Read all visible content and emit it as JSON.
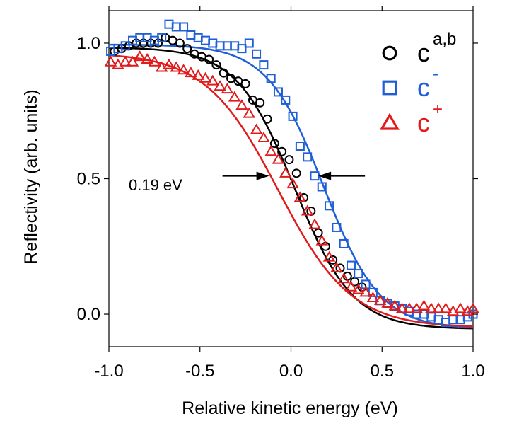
{
  "chart_data": {
    "type": "scatter",
    "title": "",
    "xlabel": "Relative kinetic energy (eV)",
    "ylabel": "Reflectivity (arb. units)",
    "xlim": [
      -1.0,
      1.0
    ],
    "ylim": [
      -0.12,
      1.12
    ],
    "xticks": [
      {
        "value": -1.0,
        "label": "-1.0"
      },
      {
        "value": -0.5,
        "label": "-0.5"
      },
      {
        "value": 0.0,
        "label": "0.0"
      },
      {
        "value": 0.5,
        "label": "0.5"
      },
      {
        "value": 1.0,
        "label": "1.0"
      }
    ],
    "yticks": [
      {
        "value": 0.0,
        "label": "0.0"
      },
      {
        "value": 0.5,
        "label": "0.5"
      },
      {
        "value": 1.0,
        "label": "1.0"
      }
    ],
    "grid": false,
    "legend_position": "top-right",
    "annotation": {
      "text": "0.19 eV",
      "y": 0.51,
      "arrow_left_x": -0.12,
      "arrow_right_x": 0.15
    },
    "series": [
      {
        "label_main": "c",
        "label_sup": "a,b",
        "marker": "circle",
        "color": "#000000",
        "points": [
          [
            -0.97,
            0.97
          ],
          [
            -0.93,
            0.98
          ],
          [
            -0.89,
            0.99
          ],
          [
            -0.85,
            1.0
          ],
          [
            -0.81,
            1.0
          ],
          [
            -0.77,
            1.0
          ],
          [
            -0.73,
            1.0
          ],
          [
            -0.69,
            1.02
          ],
          [
            -0.65,
            1.01
          ],
          [
            -0.61,
            1.0
          ],
          [
            -0.57,
            0.98
          ],
          [
            -0.53,
            0.96
          ],
          [
            -0.49,
            0.95
          ],
          [
            -0.45,
            0.94
          ],
          [
            -0.41,
            0.92
          ],
          [
            -0.37,
            0.89
          ],
          [
            -0.33,
            0.87
          ],
          [
            -0.29,
            0.86
          ],
          [
            -0.25,
            0.85
          ],
          [
            -0.21,
            0.79
          ],
          [
            -0.17,
            0.78
          ],
          [
            -0.13,
            0.72
          ],
          [
            -0.09,
            0.63
          ],
          [
            -0.05,
            0.6
          ],
          [
            -0.01,
            0.57
          ],
          [
            0.03,
            0.52
          ],
          [
            0.07,
            0.43
          ],
          [
            0.11,
            0.38
          ],
          [
            0.15,
            0.3
          ],
          [
            0.19,
            0.25
          ],
          [
            0.23,
            0.2
          ],
          [
            0.27,
            0.17
          ],
          [
            0.31,
            0.14
          ],
          [
            0.35,
            0.12
          ],
          [
            0.39,
            0.1
          ]
        ],
        "fit": {
          "top": 0.985,
          "bottom": -0.055,
          "center": 0.02,
          "width": 0.16
        }
      },
      {
        "label_main": "c",
        "label_sup": "-",
        "marker": "square",
        "color": "#1f5fd6",
        "points": [
          [
            -0.99,
            0.97
          ],
          [
            -0.95,
            0.98
          ],
          [
            -0.91,
            0.99
          ],
          [
            -0.87,
            1.01
          ],
          [
            -0.83,
            1.02
          ],
          [
            -0.79,
            1.02
          ],
          [
            -0.75,
            1.01
          ],
          [
            -0.71,
            1.02
          ],
          [
            -0.67,
            1.07
          ],
          [
            -0.63,
            1.06
          ],
          [
            -0.59,
            1.06
          ],
          [
            -0.55,
            1.03
          ],
          [
            -0.51,
            1.02
          ],
          [
            -0.47,
            1.01
          ],
          [
            -0.43,
            1.0
          ],
          [
            -0.39,
            0.99
          ],
          [
            -0.35,
            0.99
          ],
          [
            -0.31,
            0.99
          ],
          [
            -0.27,
            0.98
          ],
          [
            -0.23,
            1.0
          ],
          [
            -0.19,
            0.96
          ],
          [
            -0.15,
            0.92
          ],
          [
            -0.11,
            0.87
          ],
          [
            -0.07,
            0.82
          ],
          [
            -0.03,
            0.79
          ],
          [
            0.01,
            0.73
          ],
          [
            0.05,
            0.62
          ],
          [
            0.09,
            0.58
          ],
          [
            0.13,
            0.51
          ],
          [
            0.17,
            0.47
          ],
          [
            0.21,
            0.4
          ],
          [
            0.25,
            0.32
          ],
          [
            0.29,
            0.26
          ],
          [
            0.33,
            0.18
          ],
          [
            0.37,
            0.15
          ],
          [
            0.41,
            0.11
          ],
          [
            0.45,
            0.08
          ],
          [
            0.49,
            0.05
          ],
          [
            0.53,
            0.04
          ],
          [
            0.57,
            0.03
          ],
          [
            0.61,
            0.02
          ],
          [
            0.65,
            0.01
          ],
          [
            0.69,
            0.0
          ],
          [
            0.73,
            0.0
          ],
          [
            0.77,
            -0.01
          ],
          [
            0.81,
            -0.02
          ],
          [
            0.85,
            -0.03
          ],
          [
            0.89,
            -0.02
          ],
          [
            0.93,
            -0.02
          ],
          [
            0.97,
            -0.01
          ],
          [
            1.0,
            0.0
          ]
        ],
        "fit": {
          "top": 0.995,
          "bottom": -0.055,
          "center": 0.18,
          "width": 0.155
        }
      },
      {
        "label_main": "c",
        "label_sup": "+",
        "marker": "triangle",
        "color": "#e11b1b",
        "points": [
          [
            -0.99,
            0.93
          ],
          [
            -0.95,
            0.92
          ],
          [
            -0.91,
            0.93
          ],
          [
            -0.87,
            0.93
          ],
          [
            -0.83,
            0.95
          ],
          [
            -0.79,
            0.94
          ],
          [
            -0.75,
            0.93
          ],
          [
            -0.71,
            0.91
          ],
          [
            -0.67,
            0.92
          ],
          [
            -0.63,
            0.91
          ],
          [
            -0.59,
            0.9
          ],
          [
            -0.55,
            0.89
          ],
          [
            -0.51,
            0.88
          ],
          [
            -0.47,
            0.87
          ],
          [
            -0.43,
            0.86
          ],
          [
            -0.39,
            0.84
          ],
          [
            -0.35,
            0.83
          ],
          [
            -0.31,
            0.8
          ],
          [
            -0.27,
            0.77
          ],
          [
            -0.23,
            0.74
          ],
          [
            -0.19,
            0.68
          ],
          [
            -0.15,
            0.65
          ],
          [
            -0.11,
            0.6
          ],
          [
            -0.07,
            0.57
          ],
          [
            -0.03,
            0.52
          ],
          [
            0.01,
            0.48
          ],
          [
            0.05,
            0.43
          ],
          [
            0.09,
            0.38
          ],
          [
            0.13,
            0.33
          ],
          [
            0.17,
            0.27
          ],
          [
            0.21,
            0.21
          ],
          [
            0.25,
            0.17
          ],
          [
            0.29,
            0.13
          ],
          [
            0.33,
            0.1
          ],
          [
            0.37,
            0.09
          ],
          [
            0.41,
            0.08
          ],
          [
            0.45,
            0.06
          ],
          [
            0.49,
            0.05
          ],
          [
            0.53,
            0.04
          ],
          [
            0.57,
            0.03
          ],
          [
            0.61,
            0.02
          ],
          [
            0.65,
            0.02
          ],
          [
            0.69,
            0.02
          ],
          [
            0.73,
            0.03
          ],
          [
            0.77,
            0.02
          ],
          [
            0.81,
            0.02
          ],
          [
            0.85,
            0.02
          ],
          [
            0.89,
            0.01
          ],
          [
            0.93,
            0.02
          ],
          [
            0.97,
            0.01
          ],
          [
            1.0,
            0.02
          ]
        ],
        "fit": {
          "top": 0.965,
          "bottom": -0.05,
          "center": -0.07,
          "width": 0.2
        }
      }
    ]
  }
}
